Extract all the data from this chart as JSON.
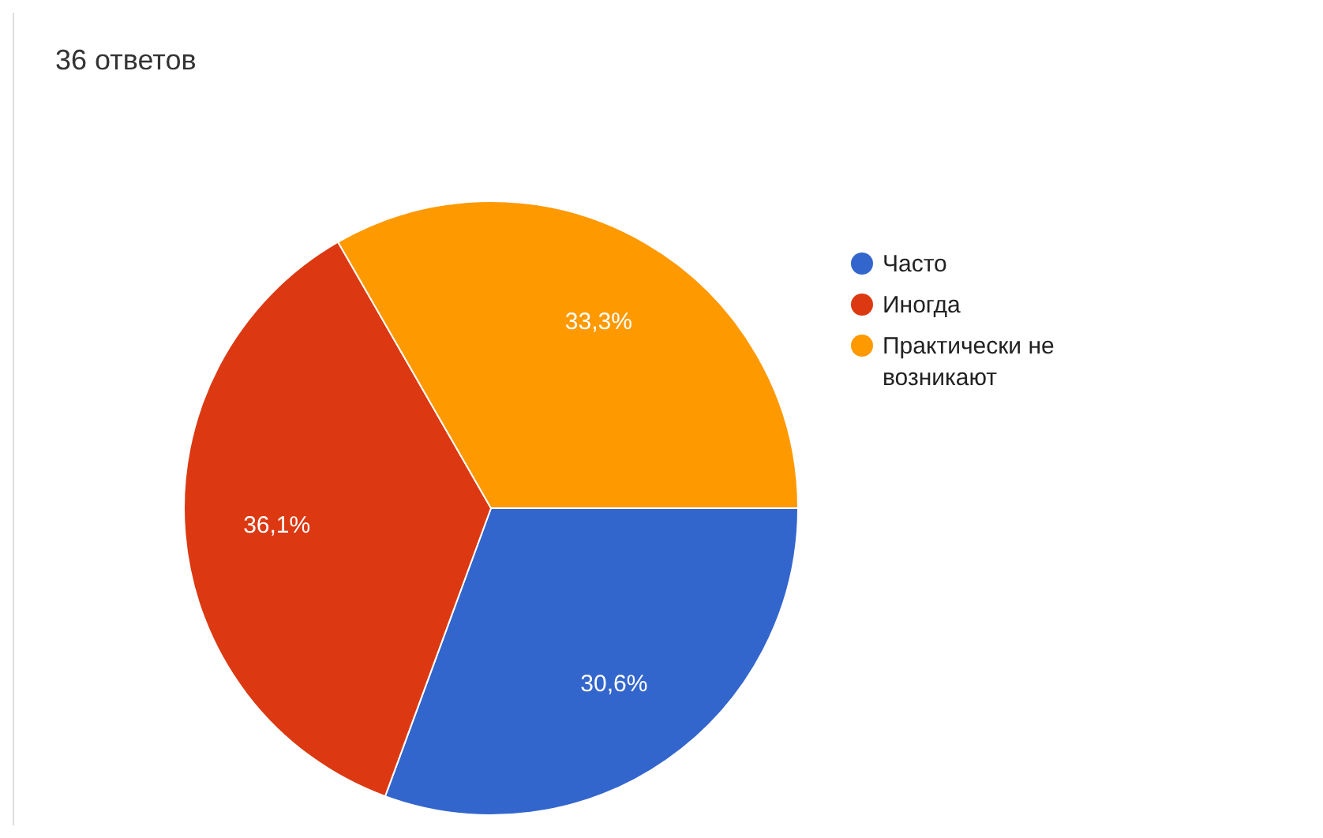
{
  "chart_data": {
    "type": "pie",
    "title": "36 ответов",
    "categories": [
      "Часто",
      "Иногда",
      "Практически не возникают"
    ],
    "values": [
      30.6,
      36.1,
      33.3
    ],
    "colors": [
      "#3366cc",
      "#dc3912",
      "#ff9900"
    ],
    "value_labels": [
      "30,6%",
      "36,1%",
      "33,3%"
    ],
    "legend": "right"
  }
}
